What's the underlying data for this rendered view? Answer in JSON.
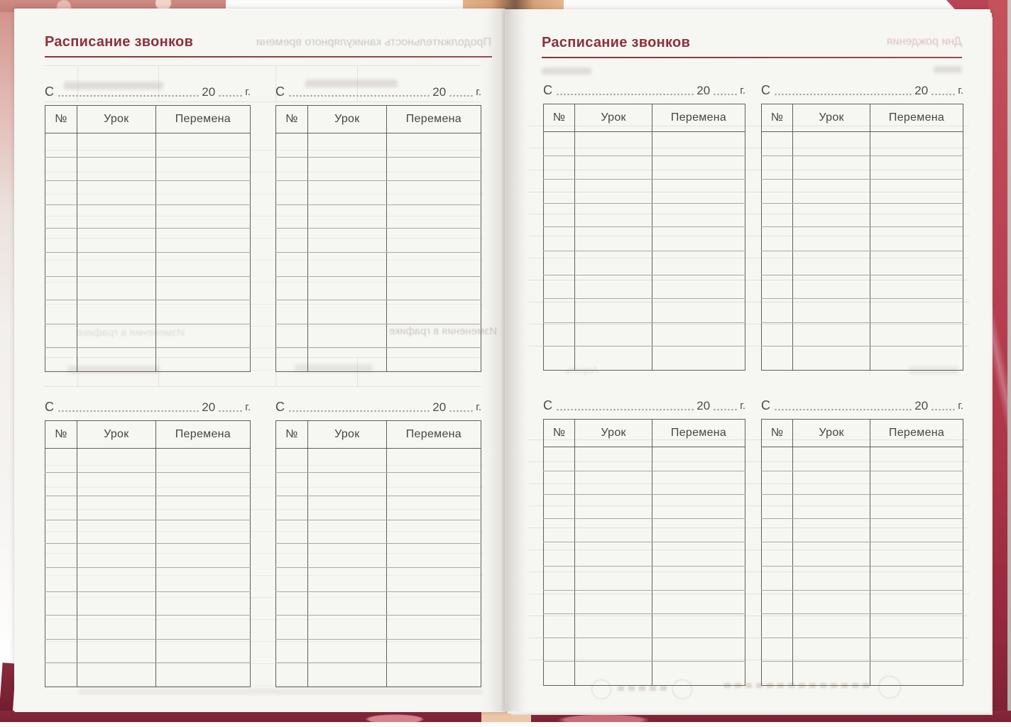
{
  "pages": {
    "left": {
      "title": "Расписание звонков"
    },
    "right": {
      "title": "Расписание звонков"
    }
  },
  "date_line": {
    "prefix": "С",
    "year": "20",
    "suffix": "г."
  },
  "table": {
    "columns": [
      "№",
      "Урок",
      "Перемена"
    ],
    "row_count": 10
  },
  "ghost_text": {
    "left_header": "Продолжительность каникулярного времени",
    "left_mid": "Изменения в графике",
    "right_header": "Дни рождения",
    "right_month": "Апрель"
  },
  "colors": {
    "accent": "#8c3138",
    "page-bg": "#f6f6f3",
    "line-dark": "#5f5f5a",
    "line-light": "#aaaaa2",
    "ink": "#4c4c47",
    "dots": "#9c9c95",
    "ghost": "#b2a8a1",
    "ghost-pink": "#c99599",
    "cover-red": "#b84455",
    "cover-maroon": "#7c2135",
    "cover-salmon": "#cf8a82",
    "cover-tan": "#dca97e"
  }
}
